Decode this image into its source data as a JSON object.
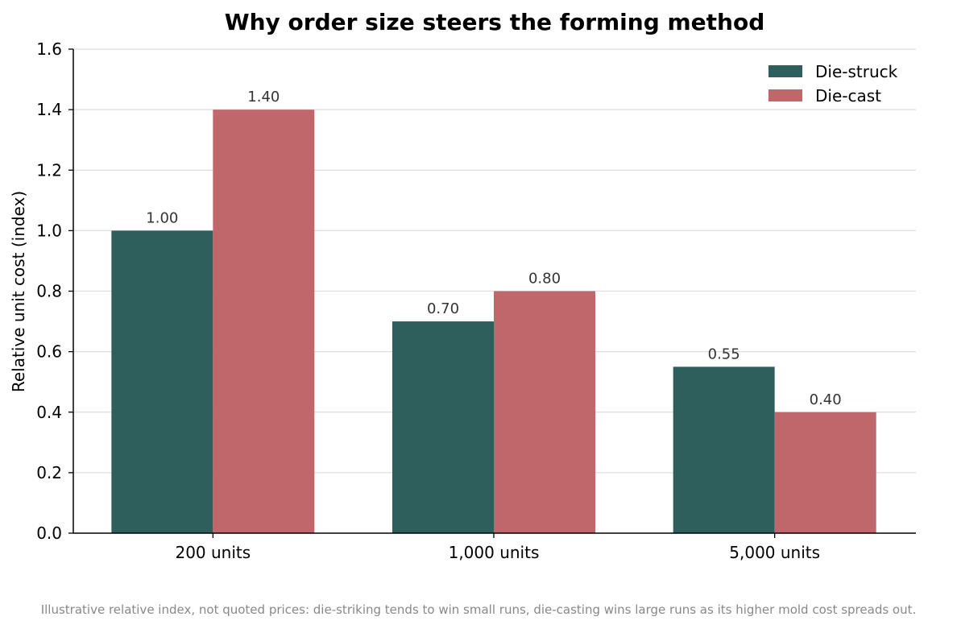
{
  "chart_data": {
    "type": "bar",
    "title": "Why order size steers the forming method",
    "xlabel": "",
    "ylabel": "Relative unit cost (index)",
    "categories": [
      "200 units",
      "1,000 units",
      "5,000 units"
    ],
    "series": [
      {
        "name": "Die-struck",
        "values": [
          1.0,
          0.7,
          0.55
        ],
        "labels": [
          "1.00",
          "0.70",
          "0.55"
        ],
        "color": "#2e5f5c"
      },
      {
        "name": "Die-cast",
        "values": [
          1.4,
          0.8,
          0.4
        ],
        "labels": [
          "1.40",
          "0.80",
          "0.40"
        ],
        "color": "#c0676b"
      }
    ],
    "ylim": [
      0,
      1.6
    ],
    "yticks": [
      "0.0",
      "0.2",
      "0.4",
      "0.6",
      "0.8",
      "1.0",
      "1.2",
      "1.4",
      "1.6"
    ],
    "grid": "horizontal",
    "legend": "top-right"
  },
  "footnote": "Illustrative relative index, not quoted prices: die-striking tends to win small runs, die-casting wins large runs as its higher mold cost spreads out."
}
